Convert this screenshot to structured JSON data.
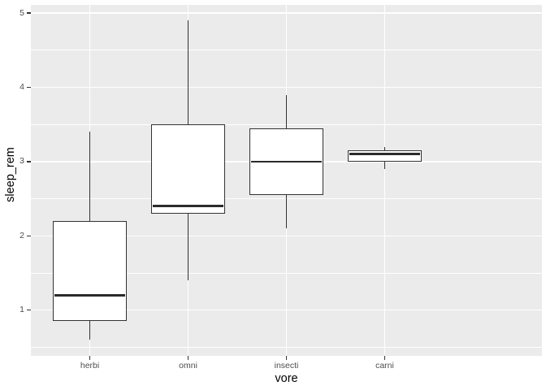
{
  "chart_data": {
    "type": "boxplot",
    "title": "",
    "xlabel": "vore",
    "ylabel": "sleep_rem",
    "categories": [
      "herbi",
      "omni",
      "insecti",
      "carni"
    ],
    "series": [
      {
        "name": "herbi",
        "min": 0.6,
        "q1": 0.85,
        "median": 1.2,
        "q3": 2.2,
        "max": 3.4
      },
      {
        "name": "omni",
        "min": 1.4,
        "q1": 2.3,
        "median": 2.4,
        "q3": 3.5,
        "max": 4.9
      },
      {
        "name": "insecti",
        "min": 2.1,
        "q1": 2.55,
        "median": 3.0,
        "q3": 3.45,
        "max": 3.9
      },
      {
        "name": "carni",
        "min": 2.9,
        "q1": 3.0,
        "median": 3.1,
        "q3": 3.15,
        "max": 3.2
      }
    ],
    "y_axis": {
      "ticks": [
        1,
        2,
        3,
        4,
        5
      ],
      "tick_labels": [
        "1",
        "2",
        "3",
        "4",
        "5"
      ],
      "minor_ticks": [
        0.5,
        1.5,
        2.5,
        3.5,
        4.5
      ],
      "range": [
        0.385,
        5.115
      ]
    },
    "grid": "on",
    "legend": "none",
    "style": {
      "plot_bg": "#FFFFFF",
      "panel_bg": "#EBEBEB",
      "grid_color": "#FFFFFF",
      "box_border": "#333333",
      "box_fill": "#FFFFFF",
      "median_color": "#2B2B2B",
      "tick_mark_color": "#333333",
      "tick_label_color": "#4D4D4D",
      "axis_title_color": "#000000"
    }
  }
}
